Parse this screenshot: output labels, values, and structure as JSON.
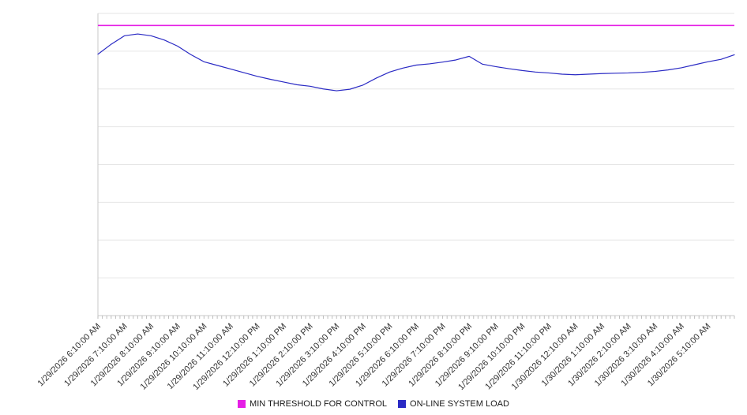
{
  "chart_data": {
    "type": "line",
    "title": "",
    "xlabel": "",
    "ylabel": "",
    "ylim": [
      0,
      100
    ],
    "grid_divisions": 8,
    "grid_on": true,
    "legend_position": "bottom",
    "background_color": "#ffffff",
    "grid_color": "#e6e6e6",
    "axis_color": "#c9c9c9",
    "tick_color": "#bdbdbd",
    "label_color": "#333333",
    "x_minor_ticks_per_hour": 6,
    "x_tick_labels": [
      "1/29/2026 6:10:00 AM",
      "1/29/2026 7:10:00 AM",
      "1/29/2026 8:10:00 AM",
      "1/29/2026 9:10:00 AM",
      "1/29/2026 10:10:00 AM",
      "1/29/2026 11:10:00 AM",
      "1/29/2026 12:10:00 PM",
      "1/29/2026 1:10:00 PM",
      "1/29/2026 2:10:00 PM",
      "1/29/2026 3:10:00 PM",
      "1/29/2026 4:10:00 PM",
      "1/29/2026 5:10:00 PM",
      "1/29/2026 6:10:00 PM",
      "1/29/2026 7:10:00 PM",
      "1/29/2026 8:10:00 PM",
      "1/29/2026 9:10:00 PM",
      "1/29/2026 10:10:00 PM",
      "1/29/2026 11:10:00 PM",
      "1/30/2026 12:10:00 AM",
      "1/30/2026 1:10:00 AM",
      "1/30/2026 2:10:00 AM",
      "1/30/2026 3:10:00 AM",
      "1/30/2026 4:10:00 AM",
      "1/30/2026 5:10:00 AM"
    ],
    "series": [
      {
        "name": "MIN THRESHOLD FOR CONTROL",
        "color": "#e51ee5",
        "kind": "constant",
        "value": 96
      },
      {
        "name": "ON-LINE SYSTEM LOAD",
        "color": "#2a2ac4",
        "kind": "line",
        "interval_minutes": 30,
        "start": "1/29/2026 6:10:00 AM",
        "values": [
          86.5,
          89.8,
          92.6,
          93.2,
          92.6,
          91.2,
          89.2,
          86.4,
          84.0,
          82.8,
          81.6,
          80.4,
          79.2,
          78.2,
          77.3,
          76.4,
          75.9,
          75.0,
          74.4,
          74.9,
          76.3,
          78.6,
          80.6,
          81.9,
          82.9,
          83.3,
          83.9,
          84.6,
          85.8,
          83.2,
          82.4,
          81.7,
          81.1,
          80.6,
          80.3,
          79.9,
          79.7,
          79.9,
          80.1,
          80.2,
          80.3,
          80.5,
          80.8,
          81.3,
          82.0,
          83.0,
          84.0,
          84.8,
          86.3
        ]
      }
    ]
  }
}
